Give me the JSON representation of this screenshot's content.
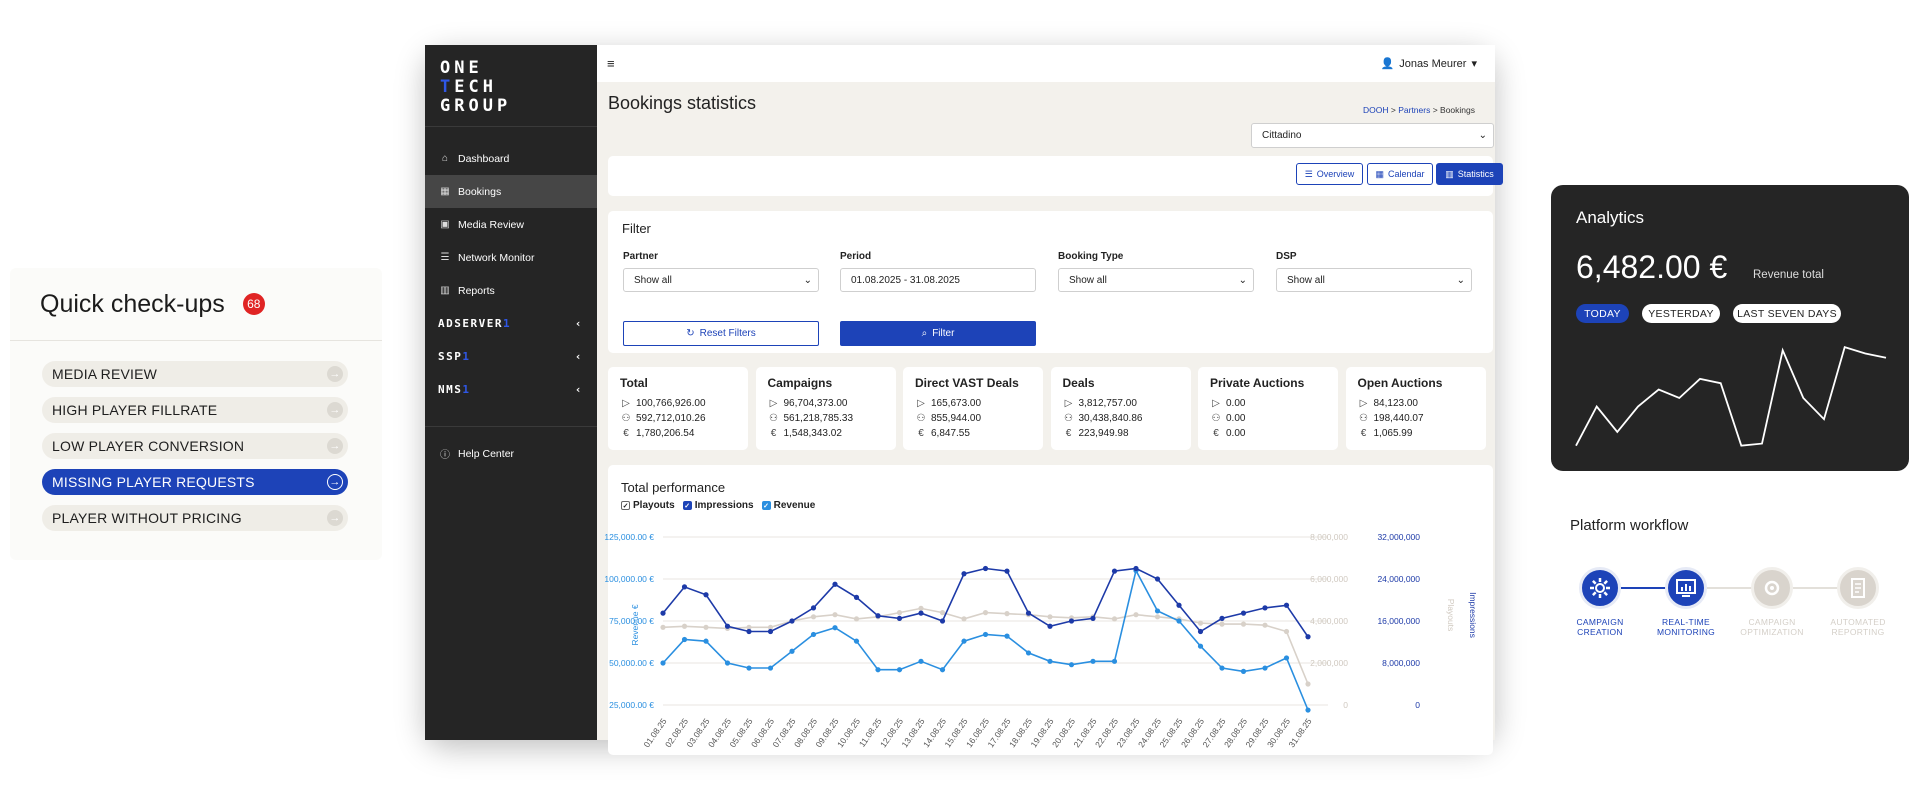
{
  "quick_checkups": {
    "title": "Quick check-ups",
    "badge": "68",
    "items": [
      {
        "label": "MEDIA REVIEW",
        "active": false
      },
      {
        "label": "HIGH PLAYER FILLRATE",
        "active": false
      },
      {
        "label": "LOW PLAYER CONVERSION",
        "active": false
      },
      {
        "label": "MISSING PLAYER REQUESTS",
        "active": true
      },
      {
        "label": "PLAYER WITHOUT PRICING",
        "active": false
      }
    ]
  },
  "app": {
    "logo": [
      "ONE",
      "TECH",
      "GROUP"
    ],
    "sidebar": {
      "items": [
        {
          "label": "Dashboard",
          "icon": "home-icon"
        },
        {
          "label": "Bookings",
          "icon": "calendar-icon"
        },
        {
          "label": "Media Review",
          "icon": "image-icon"
        },
        {
          "label": "Network Monitor",
          "icon": "sliders-icon"
        },
        {
          "label": "Reports",
          "icon": "bar-chart-icon"
        }
      ],
      "groups": [
        {
          "label": "ADSERVER",
          "num": "1"
        },
        {
          "label": "SSP",
          "num": "1"
        },
        {
          "label": "NMS",
          "num": "1"
        }
      ],
      "help": "Help Center"
    },
    "user": "Jonas Meurer",
    "page_title": "Bookings statistics",
    "breadcrumb": {
      "a": "DOOH",
      "sep": " > ",
      "b": "Partners",
      "c": "Bookings"
    },
    "partner_select": "Cittadino",
    "view_buttons": {
      "overview": "Overview",
      "calendar": "Calendar",
      "statistics": "Statistics"
    },
    "filter": {
      "title": "Filter",
      "partner_label": "Partner",
      "partner_value": "Show all",
      "period_label": "Period",
      "period_value": "01.08.2025 - 31.08.2025",
      "booking_type_label": "Booking Type",
      "booking_type_value": "Show all",
      "dsp_label": "DSP",
      "dsp_value": "Show all",
      "reset": "Reset Filters",
      "submit": "Filter"
    },
    "stats": [
      {
        "title": "Total",
        "playouts": "100,766,926.00",
        "impressions": "592,712,010.26",
        "revenue": "1,780,206.54"
      },
      {
        "title": "Campaigns",
        "playouts": "96,704,373.00",
        "impressions": "561,218,785.33",
        "revenue": "1,548,343.02"
      },
      {
        "title": "Direct VAST Deals",
        "playouts": "165,673.00",
        "impressions": "855,944.00",
        "revenue": "6,847.55"
      },
      {
        "title": "Deals",
        "playouts": "3,812,757.00",
        "impressions": "30,438,840.86",
        "revenue": "223,949.98"
      },
      {
        "title": "Private Auctions",
        "playouts": "0.00",
        "impressions": "0.00",
        "revenue": "0.00"
      },
      {
        "title": "Open Auctions",
        "playouts": "84,123.00",
        "impressions": "198,440.07",
        "revenue": "1,065.99"
      }
    ],
    "currency_symbol": "€",
    "chart_title": "Total performance",
    "legend": {
      "playouts": "Playouts",
      "impressions": "Impressions",
      "revenue": "Revenue"
    }
  },
  "chart_data": [
    {
      "type": "line",
      "title": "Total performance",
      "x": [
        "01.08.25",
        "02.08.25",
        "03.08.25",
        "04.08.25",
        "05.08.25",
        "06.08.25",
        "07.08.25",
        "08.08.25",
        "09.08.25",
        "10.08.25",
        "11.08.25",
        "12.08.25",
        "13.08.25",
        "14.08.25",
        "15.08.25",
        "16.08.25",
        "17.08.25",
        "18.08.25",
        "19.08.25",
        "20.08.25",
        "21.08.25",
        "22.08.25",
        "23.08.25",
        "24.08.25",
        "25.08.25",
        "26.08.25",
        "27.08.25",
        "28.08.25",
        "29.08.25",
        "30.08.25",
        "31.08.25"
      ],
      "ylabel_left": "Revenue €",
      "ylabel_right1": "Playouts",
      "ylabel_right2": "Impressions",
      "left_ticks": [
        "125,000.00 €",
        "100,000.00 €",
        "75,000.00 €",
        "50,000.00 €",
        "25,000.00 €"
      ],
      "right1_ticks": [
        "8,000,000",
        "6,000,000",
        "4,000,000",
        "2,000,000",
        "0"
      ],
      "right2_ticks": [
        "32,000,000",
        "24,000,000",
        "16,000,000",
        "8,000,000",
        "0"
      ],
      "series": [
        {
          "name": "Impressions",
          "axis": "right2",
          "color": "#1d3aa8",
          "values": [
            17500000,
            22500000,
            21000000,
            15000000,
            14000000,
            14000000,
            16000000,
            18500000,
            23000000,
            20500000,
            17000000,
            16500000,
            17500000,
            16000000,
            25000000,
            26000000,
            25500000,
            17500000,
            15000000,
            16000000,
            16500000,
            25500000,
            26000000,
            24000000,
            19000000,
            14000000,
            16500000,
            17500000,
            18500000,
            19000000,
            13000000
          ]
        },
        {
          "name": "Playouts",
          "axis": "right1",
          "color": "#d8d1c9",
          "values": [
            3700000,
            3750000,
            3700000,
            3650000,
            3700000,
            3700000,
            4000000,
            4200000,
            4300000,
            4100000,
            4200000,
            4400000,
            4600000,
            4400000,
            4100000,
            4400000,
            4350000,
            4300000,
            4200000,
            4150000,
            4200000,
            4100000,
            4300000,
            4200000,
            4100000,
            3900000,
            3850000,
            3850000,
            3800000,
            3500000,
            1000000
          ]
        },
        {
          "name": "Revenue",
          "axis": "left",
          "color": "#2a8fe0",
          "values": [
            50000,
            64000,
            63000,
            50000,
            47000,
            47000,
            57000,
            67000,
            71000,
            63000,
            46000,
            46000,
            51000,
            46000,
            63000,
            67000,
            66000,
            56000,
            51000,
            49000,
            51000,
            51000,
            105000,
            81000,
            75000,
            60000,
            47000,
            45000,
            47000,
            53000,
            22000
          ]
        }
      ],
      "y_left_range": [
        25000,
        125000
      ],
      "grid": true
    },
    {
      "type": "line",
      "title": "Analytics",
      "values": [
        0.05,
        0.42,
        0.18,
        0.42,
        0.58,
        0.5,
        0.68,
        0.64,
        0.05,
        0.07,
        0.95,
        0.5,
        0.3,
        0.98,
        0.92,
        0.88
      ]
    }
  ],
  "analytics": {
    "title": "Analytics",
    "value": "6,482.00 €",
    "value_label": "Revenue total",
    "pills": {
      "today": "TODAY",
      "yesterday": "YESTERDAY",
      "last_seven": "LAST SEVEN DAYS"
    }
  },
  "workflow": {
    "title": "Platform workflow",
    "steps": [
      {
        "label1": "CAMPAIGN",
        "label2": "CREATION",
        "active": true,
        "icon": "gear-icon"
      },
      {
        "label1": "REAL-TIME",
        "label2": "MONITORING",
        "active": true,
        "icon": "dashboard-icon"
      },
      {
        "label1": "CAMPAIGN",
        "label2": "OPTIMIZATION",
        "active": false,
        "icon": "gear-icon"
      },
      {
        "label1": "AUTOMATED",
        "label2": "REPORTING",
        "active": false,
        "icon": "report-icon"
      }
    ]
  },
  "colors": {
    "accent": "#1d43b8",
    "dark": "#252525",
    "badge": "#e02424"
  }
}
